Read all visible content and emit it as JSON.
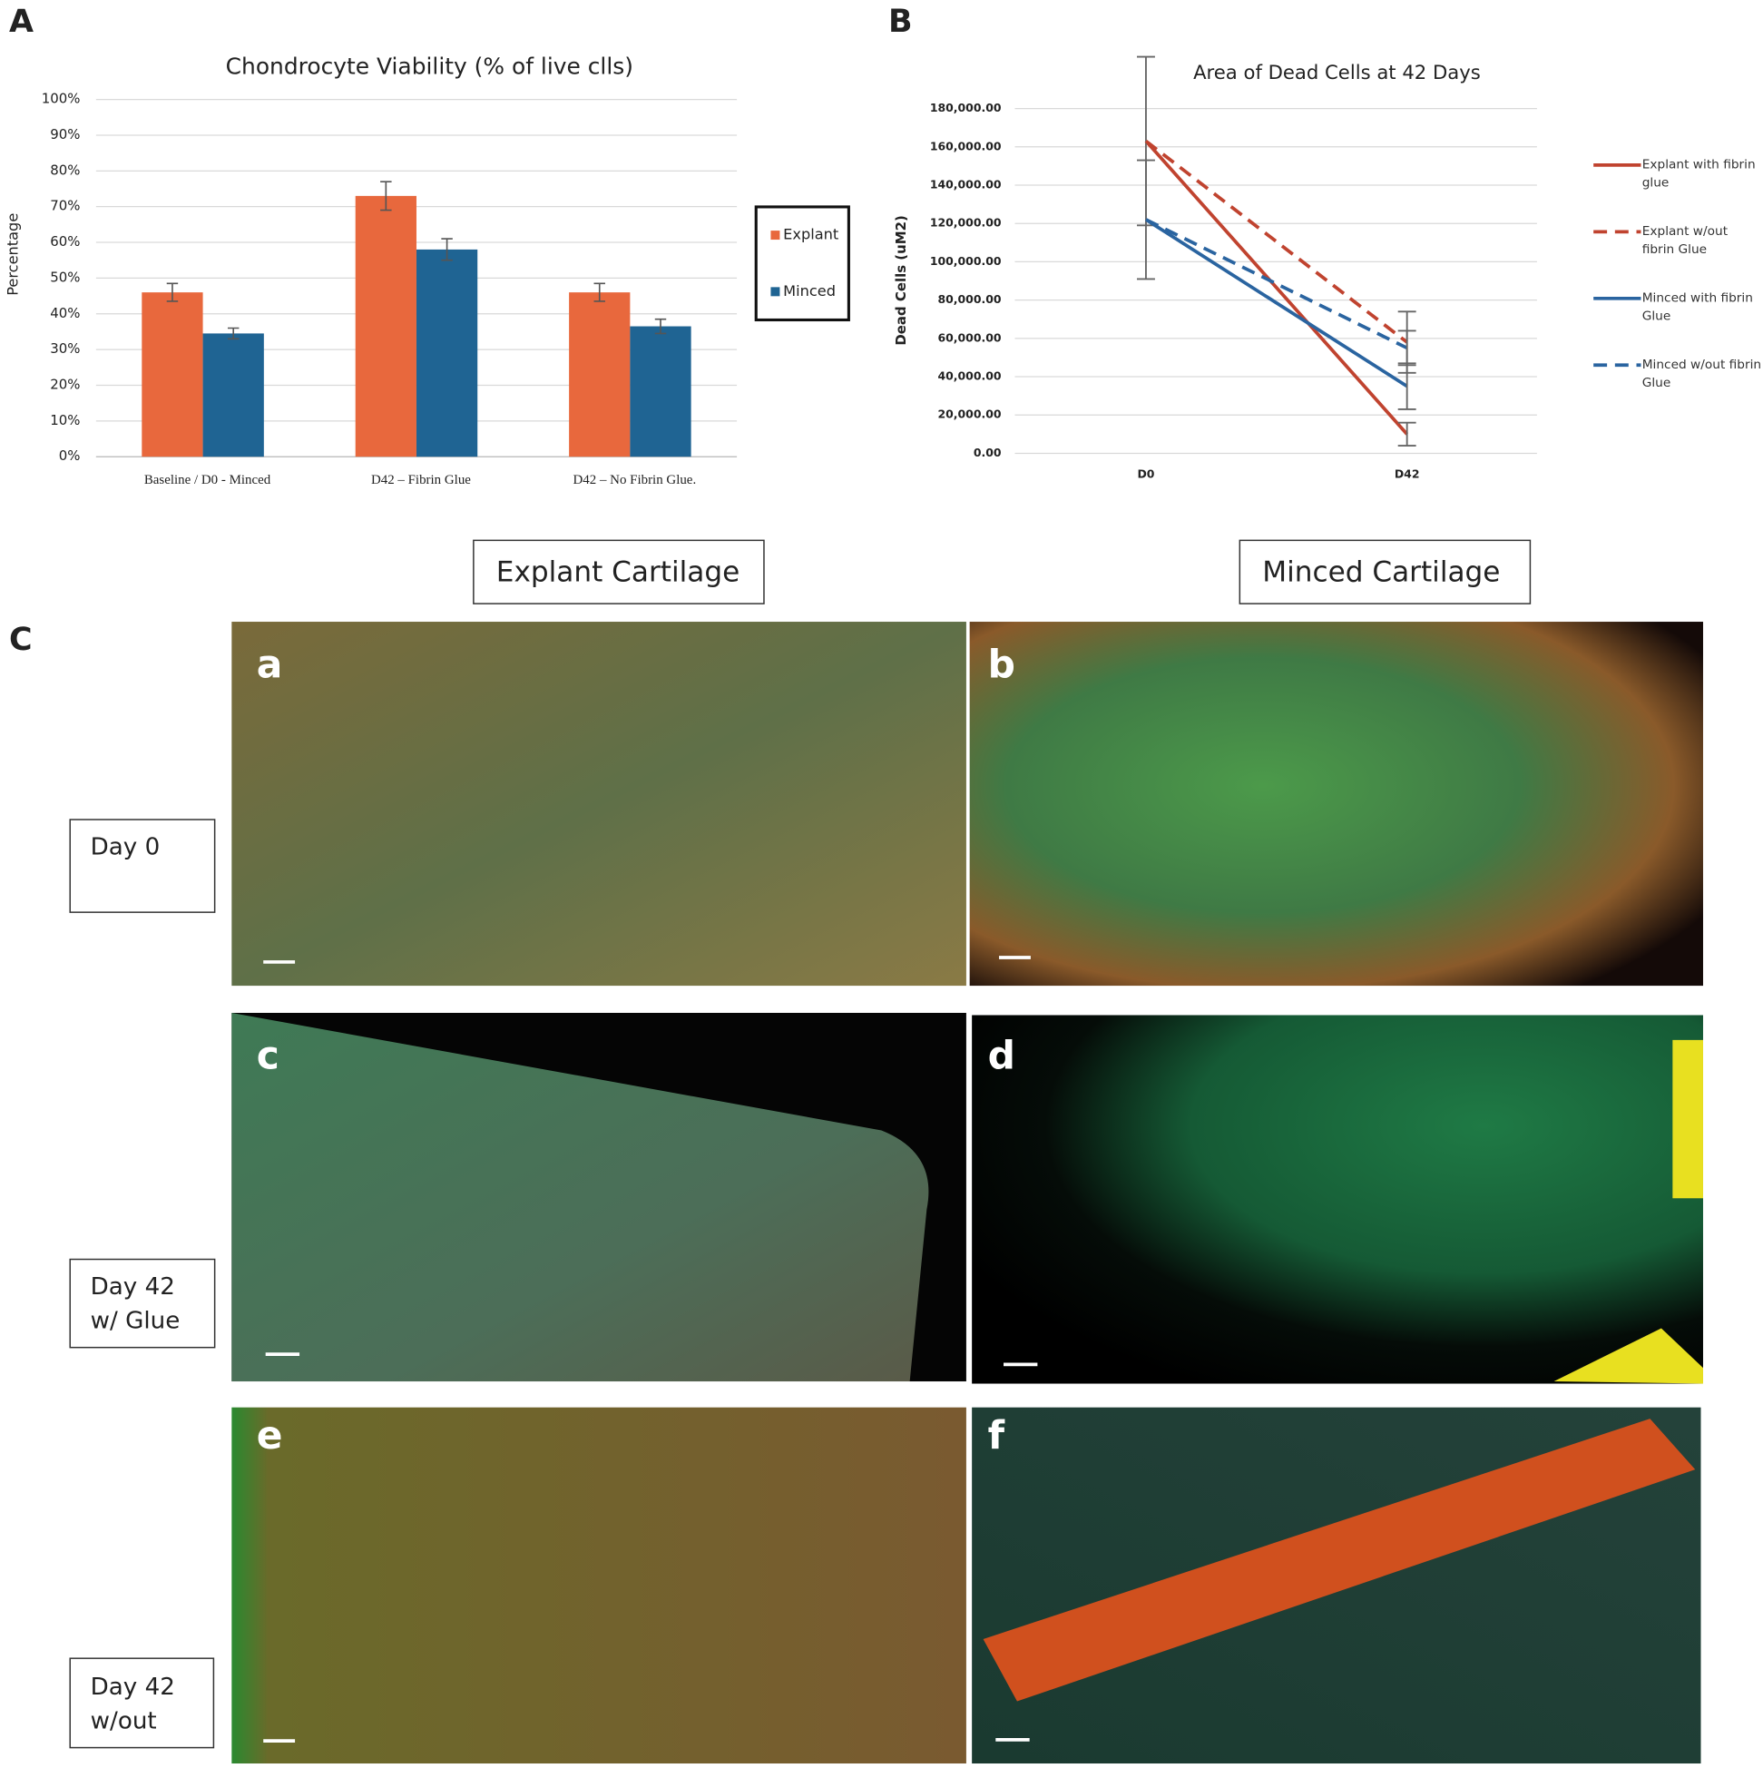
{
  "chart_data": [
    {
      "type": "bar",
      "title": "Chondrocyte Viability (% of live clls)",
      "y_label": "Percentage",
      "categories": [
        "Baseline / D0 - Minced",
        "D42 – Fibrin Glue",
        "D42 – No Fibrin Glue."
      ],
      "series": [
        {
          "name": "Explant",
          "color": "#e8683d",
          "values": [
            46,
            73,
            46
          ],
          "errors": [
            2.5,
            4,
            2.5
          ]
        },
        {
          "name": "Minced",
          "color": "#1f6493",
          "values": [
            34.5,
            58,
            36.5
          ],
          "errors": [
            1.5,
            3,
            2
          ]
        }
      ],
      "ylim": [
        0,
        100
      ],
      "yticks": [
        {
          "value": 0,
          "label": "0%"
        },
        {
          "value": 10,
          "label": "10%"
        },
        {
          "value": 20,
          "label": "20%"
        },
        {
          "value": 30,
          "label": "30%"
        },
        {
          "value": 40,
          "label": "40%"
        },
        {
          "value": 50,
          "label": "50%"
        },
        {
          "value": 60,
          "label": "60%"
        },
        {
          "value": 70,
          "label": "70%"
        },
        {
          "value": 80,
          "label": "80%"
        },
        {
          "value": 90,
          "label": "90%"
        },
        {
          "value": 100,
          "label": "100%"
        }
      ],
      "grid": true
    },
    {
      "type": "line",
      "title": "Area of Dead Cells at 42 Days",
      "y_label": "Dead Cells (uM2)",
      "categories": [
        "D0",
        "D42"
      ],
      "series": [
        {
          "name": "Explant with fibrin glue",
          "color": "#c0432f",
          "line_style": "solid",
          "values": [
            163000,
            10000
          ],
          "errors": [
            44000,
            6000
          ]
        },
        {
          "name": "Explant w/out fibrin Glue",
          "color": "#c0432f",
          "line_style": "dashed",
          "values": [
            163000,
            58000
          ],
          "errors": [
            null,
            16000
          ]
        },
        {
          "name": "Minced with fibrin Glue",
          "color": "#2a64a0",
          "line_style": "solid",
          "values": [
            122000,
            35000
          ],
          "errors": [
            31000,
            12000
          ]
        },
        {
          "name": "Minced w/out fibrin Glue",
          "color": "#2a64a0",
          "line_style": "dashed",
          "values": [
            122000,
            55000
          ],
          "errors": [
            null,
            9000
          ]
        }
      ],
      "ylim": [
        0,
        180000
      ],
      "yticks": [
        {
          "value": 0,
          "label": "0.00"
        },
        {
          "value": 20000,
          "label": "20,000.00"
        },
        {
          "value": 40000,
          "label": "40,000.00"
        },
        {
          "value": 60000,
          "label": "60,000.00"
        },
        {
          "value": 80000,
          "label": "80,000.00"
        },
        {
          "value": 100000,
          "label": "100,000.00"
        },
        {
          "value": 120000,
          "label": "120,000.00"
        },
        {
          "value": 140000,
          "label": "140,000.00"
        },
        {
          "value": 160000,
          "label": "160,000.00"
        },
        {
          "value": 180000,
          "label": "180,000.00"
        }
      ],
      "grid": true
    }
  ],
  "panels": {
    "labels": [
      "A",
      "B",
      "C"
    ],
    "columns": [
      "Explant Cartilage",
      "Minced Cartilage"
    ],
    "rows": [
      [
        "Day 0"
      ],
      [
        "Day 42",
        "w/ Glue"
      ],
      [
        "Day 42",
        "w/out"
      ]
    ],
    "images": [
      "a",
      "b",
      "c",
      "d",
      "e",
      "f"
    ]
  }
}
